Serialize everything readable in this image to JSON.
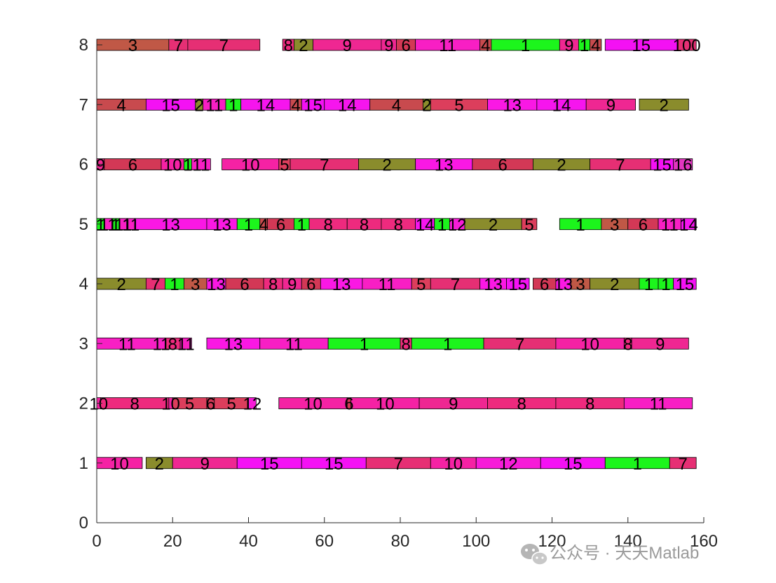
{
  "chart_data": {
    "type": "gantt",
    "title": "",
    "xlabel": "",
    "ylabel": "",
    "xlim": [
      0,
      160
    ],
    "ylim": [
      0,
      8
    ],
    "xticks": [
      "0",
      "20",
      "40",
      "60",
      "80",
      "100",
      "120",
      "140",
      "160"
    ],
    "yticks": [
      "0",
      "1",
      "2",
      "3",
      "4",
      "5",
      "6",
      "7",
      "8"
    ],
    "job_colors": {
      "1": "#1CF51C",
      "2": "#8A8C2C",
      "3": "#C05846",
      "4": "#C84A4E",
      "5": "#DC3E5C",
      "6": "#D33856",
      "7": "#E62F74",
      "8": "#EE2A7E",
      "9": "#EF2792",
      "10": "#F522A4",
      "11": "#F81FC4",
      "12": "#F71CD8",
      "13": "#FA18E4",
      "14": "#F615EE",
      "15": "#F411F4",
      "16": "#E236C0"
    },
    "machines": [
      {
        "machine": 1,
        "tasks": [
          {
            "job": "10",
            "start": 0,
            "end": 12
          },
          {
            "job": "2",
            "start": 13,
            "end": 20
          },
          {
            "job": "9",
            "start": 20,
            "end": 37
          },
          {
            "job": "15",
            "start": 37,
            "end": 54
          },
          {
            "job": "15",
            "start": 54,
            "end": 71
          },
          {
            "job": "7",
            "start": 71,
            "end": 88
          },
          {
            "job": "10",
            "start": 88,
            "end": 100
          },
          {
            "job": "12",
            "start": 100,
            "end": 117
          },
          {
            "job": "15",
            "start": 117,
            "end": 134
          },
          {
            "job": "1",
            "start": 134,
            "end": 151
          },
          {
            "job": "7",
            "start": 151,
            "end": 158
          }
        ]
      },
      {
        "machine": 2,
        "tasks": [
          {
            "job": "10",
            "start": 0,
            "end": 1
          },
          {
            "job": "8",
            "start": 1,
            "end": 19
          },
          {
            "job": "10",
            "start": 19,
            "end": 20
          },
          {
            "job": "5",
            "start": 20,
            "end": 29
          },
          {
            "job": "6",
            "start": 29,
            "end": 31
          },
          {
            "job": "5",
            "start": 31,
            "end": 40
          },
          {
            "job": "12",
            "start": 40,
            "end": 42
          },
          {
            "job": "10",
            "start": 48,
            "end": 66
          },
          {
            "job": "6",
            "start": 66,
            "end": 67
          },
          {
            "job": "10",
            "start": 67,
            "end": 85
          },
          {
            "job": "9",
            "start": 85,
            "end": 103
          },
          {
            "job": "8",
            "start": 103,
            "end": 121
          },
          {
            "job": "8",
            "start": 121,
            "end": 139
          },
          {
            "job": "11",
            "start": 139,
            "end": 157
          }
        ]
      },
      {
        "machine": 3,
        "tasks": [
          {
            "job": "11",
            "start": 0,
            "end": 16
          },
          {
            "job": "11",
            "start": 16,
            "end": 18
          },
          {
            "job": "8",
            "start": 18,
            "end": 22
          },
          {
            "job": "11",
            "start": 22,
            "end": 25
          },
          {
            "job": "13",
            "start": 29,
            "end": 43
          },
          {
            "job": "11",
            "start": 43,
            "end": 61
          },
          {
            "job": "1",
            "start": 61,
            "end": 80
          },
          {
            "job": "8",
            "start": 80,
            "end": 83
          },
          {
            "job": "1",
            "start": 83,
            "end": 102
          },
          {
            "job": "7",
            "start": 102,
            "end": 121
          },
          {
            "job": "10",
            "start": 121,
            "end": 139
          },
          {
            "job": "8",
            "start": 139,
            "end": 141
          },
          {
            "job": "9",
            "start": 141,
            "end": 156
          }
        ]
      },
      {
        "machine": 4,
        "tasks": [
          {
            "job": "2",
            "start": 0,
            "end": 13
          },
          {
            "job": "7",
            "start": 13,
            "end": 18
          },
          {
            "job": "1",
            "start": 18,
            "end": 23
          },
          {
            "job": "3",
            "start": 23,
            "end": 29
          },
          {
            "job": "13",
            "start": 29,
            "end": 34
          },
          {
            "job": "6",
            "start": 34,
            "end": 44
          },
          {
            "job": "8",
            "start": 44,
            "end": 49
          },
          {
            "job": "9",
            "start": 49,
            "end": 54
          },
          {
            "job": "6",
            "start": 54,
            "end": 59
          },
          {
            "job": "13",
            "start": 59,
            "end": 70
          },
          {
            "job": "11",
            "start": 70,
            "end": 83
          },
          {
            "job": "5",
            "start": 83,
            "end": 88
          },
          {
            "job": "7",
            "start": 88,
            "end": 101
          },
          {
            "job": "13",
            "start": 101,
            "end": 108
          },
          {
            "job": "15",
            "start": 108,
            "end": 114
          },
          {
            "job": "6",
            "start": 115,
            "end": 121
          },
          {
            "job": "13",
            "start": 121,
            "end": 125
          },
          {
            "job": "3",
            "start": 125,
            "end": 130
          },
          {
            "job": "2",
            "start": 130,
            "end": 143
          },
          {
            "job": "1",
            "start": 143,
            "end": 148
          },
          {
            "job": "1",
            "start": 148,
            "end": 152
          },
          {
            "job": "15",
            "start": 152,
            "end": 158
          }
        ]
      },
      {
        "machine": 5,
        "tasks": [
          {
            "job": "1",
            "start": 0,
            "end": 2
          },
          {
            "job": "11",
            "start": 2,
            "end": 4
          },
          {
            "job": "1",
            "start": 4,
            "end": 6
          },
          {
            "job": "11",
            "start": 6,
            "end": 8
          },
          {
            "job": "11",
            "start": 8,
            "end": 10
          },
          {
            "job": "13",
            "start": 10,
            "end": 29
          },
          {
            "job": "13",
            "start": 29,
            "end": 37
          },
          {
            "job": "1",
            "start": 37,
            "end": 43
          },
          {
            "job": "4",
            "start": 43,
            "end": 45
          },
          {
            "job": "6",
            "start": 45,
            "end": 52
          },
          {
            "job": "1",
            "start": 52,
            "end": 56
          },
          {
            "job": "8",
            "start": 56,
            "end": 66
          },
          {
            "job": "8",
            "start": 66,
            "end": 75
          },
          {
            "job": "8",
            "start": 75,
            "end": 84
          },
          {
            "job": "14",
            "start": 84,
            "end": 89
          },
          {
            "job": "1",
            "start": 89,
            "end": 93
          },
          {
            "job": "12",
            "start": 93,
            "end": 97
          },
          {
            "job": "2",
            "start": 97,
            "end": 112
          },
          {
            "job": "5",
            "start": 112,
            "end": 116
          },
          {
            "job": "1",
            "start": 122,
            "end": 133
          },
          {
            "job": "3",
            "start": 133,
            "end": 140
          },
          {
            "job": "6",
            "start": 140,
            "end": 148
          },
          {
            "job": "11",
            "start": 148,
            "end": 154
          },
          {
            "job": "14",
            "start": 154,
            "end": 158
          }
        ]
      },
      {
        "machine": 6,
        "tasks": [
          {
            "job": "9",
            "start": 0,
            "end": 2
          },
          {
            "job": "6",
            "start": 2,
            "end": 17
          },
          {
            "job": "10",
            "start": 17,
            "end": 23
          },
          {
            "job": "1",
            "start": 23,
            "end": 25
          },
          {
            "job": "11",
            "start": 25,
            "end": 30
          },
          {
            "job": "10",
            "start": 33,
            "end": 48
          },
          {
            "job": "5",
            "start": 48,
            "end": 51
          },
          {
            "job": "7",
            "start": 51,
            "end": 69
          },
          {
            "job": "2",
            "start": 69,
            "end": 84
          },
          {
            "job": "13",
            "start": 84,
            "end": 99
          },
          {
            "job": "6",
            "start": 99,
            "end": 115
          },
          {
            "job": "2",
            "start": 115,
            "end": 130
          },
          {
            "job": "7",
            "start": 130,
            "end": 146
          },
          {
            "job": "15",
            "start": 146,
            "end": 152
          },
          {
            "job": "16",
            "start": 152,
            "end": 157
          }
        ]
      },
      {
        "machine": 7,
        "tasks": [
          {
            "job": "4",
            "start": 0,
            "end": 13
          },
          {
            "job": "15",
            "start": 13,
            "end": 26
          },
          {
            "job": "2",
            "start": 26,
            "end": 28
          },
          {
            "job": "11",
            "start": 28,
            "end": 34
          },
          {
            "job": "1",
            "start": 34,
            "end": 38
          },
          {
            "job": "14",
            "start": 38,
            "end": 51
          },
          {
            "job": "4",
            "start": 51,
            "end": 54
          },
          {
            "job": "15",
            "start": 54,
            "end": 60
          },
          {
            "job": "14",
            "start": 60,
            "end": 72
          },
          {
            "job": "4",
            "start": 72,
            "end": 86
          },
          {
            "job": "2",
            "start": 86,
            "end": 88
          },
          {
            "job": "5",
            "start": 88,
            "end": 103
          },
          {
            "job": "13",
            "start": 103,
            "end": 116
          },
          {
            "job": "14",
            "start": 116,
            "end": 129
          },
          {
            "job": "9",
            "start": 129,
            "end": 142
          },
          {
            "job": "2",
            "start": 143,
            "end": 156
          }
        ]
      },
      {
        "machine": 8,
        "tasks": [
          {
            "job": "3",
            "start": 0,
            "end": 19
          },
          {
            "job": "7",
            "start": 19,
            "end": 24
          },
          {
            "job": "7",
            "start": 24,
            "end": 43
          },
          {
            "job": "8",
            "start": 49,
            "end": 52
          },
          {
            "job": "2",
            "start": 52,
            "end": 57
          },
          {
            "job": "9",
            "start": 57,
            "end": 75
          },
          {
            "job": "9",
            "start": 75,
            "end": 79
          },
          {
            "job": "6",
            "start": 79,
            "end": 84
          },
          {
            "job": "11",
            "start": 84,
            "end": 101
          },
          {
            "job": "4",
            "start": 101,
            "end": 104
          },
          {
            "job": "1",
            "start": 104,
            "end": 122
          },
          {
            "job": "9",
            "start": 122,
            "end": 127
          },
          {
            "job": "1",
            "start": 127,
            "end": 130
          },
          {
            "job": "4",
            "start": 130,
            "end": 133
          },
          {
            "job": "15",
            "start": 134,
            "end": 153
          },
          {
            "job": "100",
            "start": 153,
            "end": 158
          }
        ]
      }
    ]
  },
  "watermark": {
    "text": "公众号 · 天天Matlab",
    "icon": "wechat-icon"
  }
}
